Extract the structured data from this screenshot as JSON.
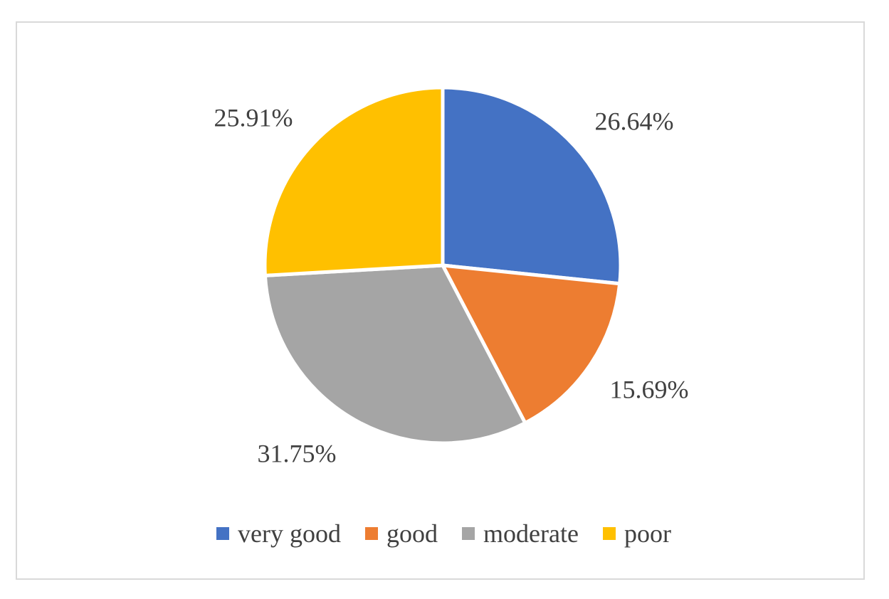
{
  "chart_data": {
    "type": "pie",
    "title": "",
    "categories": [
      "very good",
      "good",
      "moderate",
      "poor"
    ],
    "values": [
      26.64,
      15.69,
      31.75,
      25.91
    ],
    "labels": [
      "26.64%",
      "15.69%",
      "31.75%",
      "25.91%"
    ],
    "colors": [
      "#4472C4",
      "#ED7D31",
      "#A5A5A5",
      "#FFC000"
    ],
    "start_angle_deg": 0,
    "direction": "clockwise",
    "legend_position": "bottom"
  }
}
